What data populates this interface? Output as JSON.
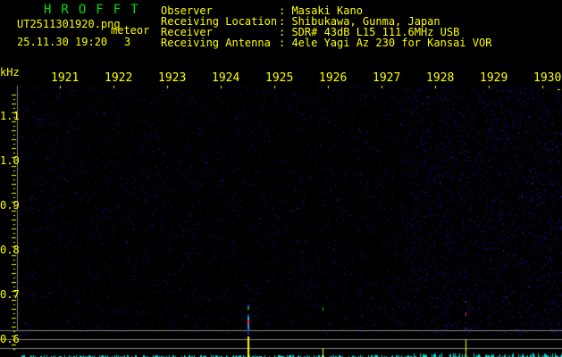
{
  "app_title": "HROFFT",
  "file_name": "UT2511301920.png",
  "mode": "meteor",
  "datetime": "25.11.30 19:20",
  "count": "3",
  "info": [
    {
      "label": "Observer",
      "value": ": Masaki Kano"
    },
    {
      "label": "Receiving Location",
      "value": ": Shibukawa, Gunma, Japan"
    },
    {
      "label": "Receiver",
      "value": ": SDR# 43dB L15 111.6MHz USB"
    },
    {
      "label": "Receiving Antenna",
      "value": ": 4ele Yagi Az 230 for Kansai VOR"
    }
  ],
  "y_unit": "kHz",
  "x_ticks": [
    "1921",
    "1922",
    "1923",
    "1924",
    "1925",
    "1926",
    "1927",
    "1928",
    "1929",
    "1930"
  ],
  "y_ticks": [
    "1.1",
    "1.0",
    "0.9",
    "0.8",
    "0.7",
    "0.6"
  ],
  "colors": {
    "text": "#ffff00",
    "title": "#00e000",
    "noise": "#1010a0",
    "spectrum": "#00e0e0",
    "grid": "#808080"
  }
}
